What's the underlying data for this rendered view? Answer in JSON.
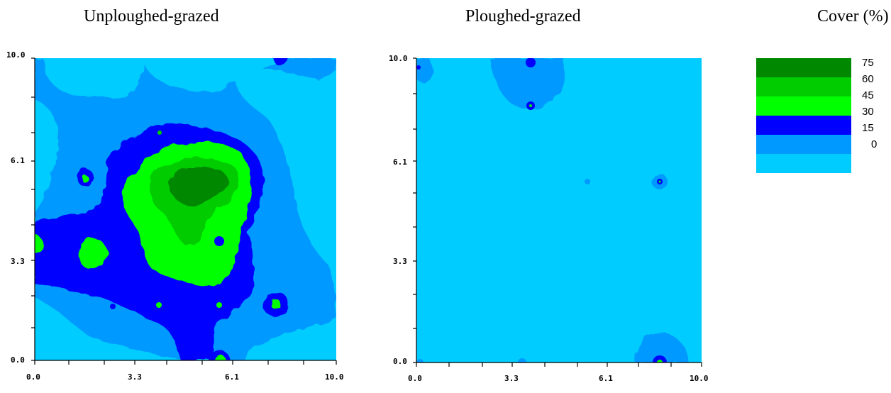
{
  "titles": {
    "left": "Unploughed-grazed",
    "right": "Ploughed-grazed",
    "legend": "Cover (%)"
  },
  "colors": {
    "c0": "#00ccff",
    "c15": "#0099ff",
    "c30": "#0000ff",
    "c45": "#00ff00",
    "c60": "#00cc00",
    "c75": "#008800"
  },
  "chart_data": [
    {
      "type": "heatmap",
      "title": "Unploughed-grazed",
      "xlim": [
        0.0,
        10.0
      ],
      "ylim": [
        0.0,
        10.0
      ],
      "x_ticks": [
        "0.0",
        "3.3",
        "6.1",
        "10.0"
      ],
      "y_ticks": [
        "0.0",
        "3.3",
        "6.1",
        "10.0"
      ],
      "description_levels": [
        0,
        15,
        30,
        45,
        60,
        75
      ],
      "features": [
        {
          "level": 15,
          "shape": "region",
          "x": 5.0,
          "y": 5.0
        },
        {
          "level": 30,
          "shape": "blob",
          "x": 4.8,
          "y": 4.8
        },
        {
          "level": 45,
          "shape": "blob",
          "x": 5.6,
          "y": 4.9
        },
        {
          "level": 60,
          "shape": "blob",
          "x": 5.3,
          "y": 5.0
        },
        {
          "level": 75,
          "shape": "blob",
          "x": 5.5,
          "y": 5.5
        },
        {
          "level": 45,
          "shape": "spot",
          "x": 2.0,
          "y": 3.5
        },
        {
          "level": 45,
          "shape": "spot",
          "x": 0.1,
          "y": 3.9
        },
        {
          "level": 45,
          "shape": "spot",
          "x": 7.5,
          "y": 2.0
        },
        {
          "level": 45,
          "shape": "spot",
          "x": 5.9,
          "y": 0.2
        },
        {
          "level": 45,
          "shape": "spot",
          "x": 1.6,
          "y": 5.7
        },
        {
          "level": 30,
          "shape": "spot",
          "x": 8.0,
          "y": 10.0
        }
      ]
    },
    {
      "type": "heatmap",
      "title": "Ploughed-grazed",
      "xlim": [
        0.0,
        10.0
      ],
      "ylim": [
        0.0,
        10.0
      ],
      "x_ticks": [
        "0.0",
        "3.3",
        "6.1",
        "10.0"
      ],
      "y_ticks": [
        "0.0",
        "3.3",
        "6.1",
        "10.0"
      ],
      "description_levels": [
        0,
        15,
        30,
        45,
        60,
        75
      ],
      "features": [
        {
          "level": 15,
          "shape": "blob",
          "x": 3.9,
          "y": 9.3
        },
        {
          "level": 30,
          "shape": "spot",
          "x": 3.9,
          "y": 8.2
        },
        {
          "level": 30,
          "shape": "spot",
          "x": 3.9,
          "y": 9.9
        },
        {
          "level": 15,
          "shape": "spot",
          "x": 8.8,
          "y": 5.6
        },
        {
          "level": 15,
          "shape": "blob",
          "x": 8.8,
          "y": 0.3
        },
        {
          "level": 30,
          "shape": "spot",
          "x": 8.8,
          "y": 0.1
        },
        {
          "level": 15,
          "shape": "spot",
          "x": 0.1,
          "y": 9.8
        },
        {
          "level": 15,
          "shape": "spot",
          "x": 5.9,
          "y": 5.6
        }
      ]
    }
  ],
  "legend": {
    "items": [
      {
        "label": "75",
        "color": "#008800"
      },
      {
        "label": "60",
        "color": "#00cc00"
      },
      {
        "label": "45",
        "color": "#00ff00"
      },
      {
        "label": "30",
        "color": "#0000ff"
      },
      {
        "label": "15",
        "color": "#0099ff"
      },
      {
        "label": "0",
        "color": "#00ccff"
      }
    ]
  }
}
